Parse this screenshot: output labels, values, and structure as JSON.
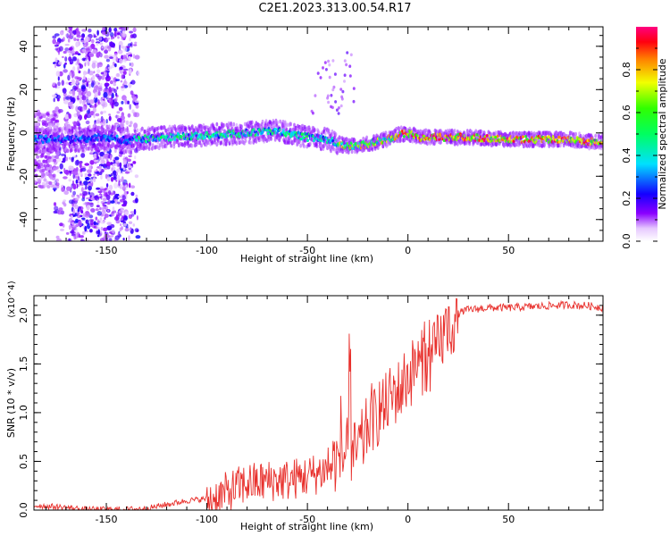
{
  "title": "C2E1.2023.313.00.54.R17",
  "colors": {
    "line": "#e8302c",
    "axis": "#000000"
  },
  "chart_data": [
    {
      "type": "heatmap",
      "xlabel": "Height of straight line (km)",
      "ylabel": "Frequency (Hz)",
      "xlim": [
        -186,
        97
      ],
      "ylim": [
        -50,
        49
      ],
      "x_ticks": [
        -150,
        -100,
        -50,
        0,
        50
      ],
      "y_ticks": [
        -40,
        -20,
        0,
        20,
        40
      ],
      "colorbar": {
        "label": "Normalized spectral amplitude",
        "range": [
          0,
          1
        ],
        "ticks": [
          "0.0",
          "0.2",
          "0.4",
          "0.6",
          "0.8"
        ],
        "colormap": "rainbow (white-violet-blue-cyan-green-yellow-red-magenta)"
      },
      "ridge": {
        "description": "main spectral ridge frequency vs height",
        "x": [
          -186,
          -170,
          -150,
          -138,
          -136,
          -120,
          -100,
          -80,
          -65,
          -50,
          -40,
          -35,
          -30,
          -25,
          -20,
          -15,
          -10,
          -5,
          0,
          5,
          10,
          20,
          30,
          50,
          70,
          80,
          90,
          97
        ],
        "y": [
          -3,
          -3,
          -2,
          -4,
          -3,
          -2,
          -1,
          0,
          1,
          -2,
          -3,
          -5,
          -6,
          -6,
          -5,
          -4,
          -3,
          -1,
          0,
          -2,
          -2,
          -2,
          -2,
          -3,
          -3,
          -3,
          -4,
          -4
        ]
      }
    },
    {
      "type": "line",
      "xlabel": "Height of straight line (km)",
      "ylabel": "SNR (10 * v/v)",
      "y_multiplier": "(x10^4)",
      "xlim": [
        -186,
        97
      ],
      "ylim": [
        0,
        2.2
      ],
      "x_ticks": [
        -150,
        -100,
        -50,
        0,
        50
      ],
      "y_ticks": [
        "0.0",
        "0.5",
        "1.0",
        "1.5",
        "2.0"
      ],
      "series": [
        {
          "x": [
            -186,
            -170,
            -160,
            -150,
            -140,
            -130,
            -120,
            -110,
            -100,
            -95,
            -90,
            -85,
            -80,
            -75,
            -70,
            -65,
            -60,
            -55,
            -50,
            -45,
            -40,
            -38,
            -36,
            -34,
            -32,
            -30,
            -28,
            -26,
            -24,
            -22,
            -20,
            -18,
            -16,
            -14,
            -12,
            -10,
            -8,
            -6,
            -4,
            -2,
            0,
            2,
            4,
            6,
            8,
            10,
            12,
            14,
            16,
            18,
            20,
            22,
            24,
            26,
            28,
            30,
            35,
            40,
            50,
            60,
            70,
            80,
            90,
            97
          ],
          "values": [
            0.05,
            0.03,
            0.01,
            0.01,
            0.01,
            0.02,
            0.06,
            0.1,
            0.12,
            0.15,
            0.2,
            0.25,
            0.3,
            0.3,
            0.32,
            0.33,
            0.33,
            0.35,
            0.37,
            0.4,
            0.45,
            0.5,
            0.55,
            0.55,
            0.6,
            0.65,
            0.6,
            0.62,
            0.7,
            0.75,
            0.9,
            1.0,
            0.95,
            1.1,
            1.05,
            1.15,
            1.2,
            1.25,
            1.25,
            1.35,
            1.4,
            1.45,
            1.55,
            1.5,
            1.6,
            1.5,
            1.55,
            1.7,
            1.75,
            1.85,
            1.9,
            1.95,
            2.0,
            2.03,
            2.05,
            2.06,
            2.07,
            2.08,
            2.08,
            2.09,
            2.1,
            2.11,
            2.1,
            2.08
          ]
        }
      ]
    }
  ]
}
